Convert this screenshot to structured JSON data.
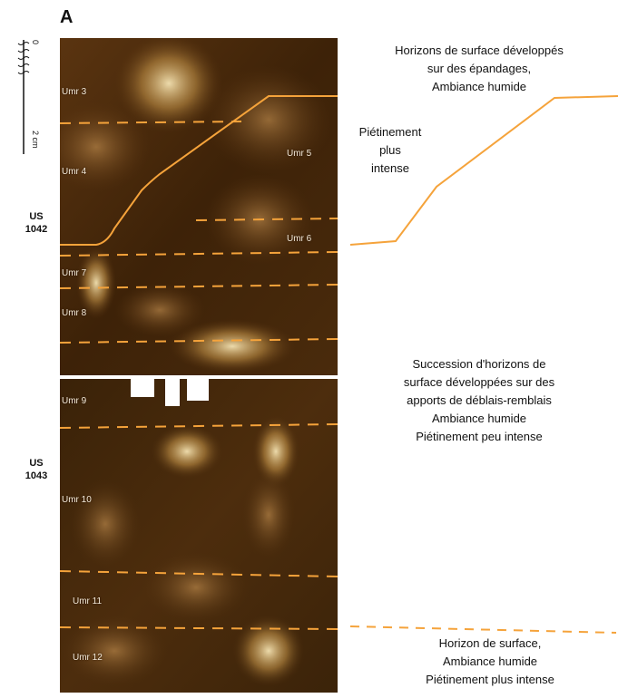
{
  "figure_label": "A",
  "scale": {
    "top": "0",
    "bottom": "2 cm"
  },
  "sections": [
    {
      "label": "US\n1042"
    },
    {
      "label": "US\n1043"
    }
  ],
  "umr_labels": [
    "Umr 3",
    "Umr 4",
    "Umr 5",
    "Umr 6",
    "Umr 7",
    "Umr 8",
    "Umr 9",
    "Umr 10",
    "Umr 11",
    "Umr 12"
  ],
  "descriptions": {
    "d1": "Horizons de surface développés\nsur des épandages,\nAmbiance humide",
    "d2": "Piétinement\nplus\nintense",
    "d3": "Succession d'horizons de\nsurface développées sur des\napports de déblais-remblais\nAmbiance humide\nPiétinement peu intense",
    "d4": "Horizon de surface,\nAmbiance humide\nPiétinement plus intense"
  },
  "colors": {
    "accent": "#f5a33b",
    "sediment_dark": "#3a2208",
    "sediment_light": "#f2dfae"
  }
}
